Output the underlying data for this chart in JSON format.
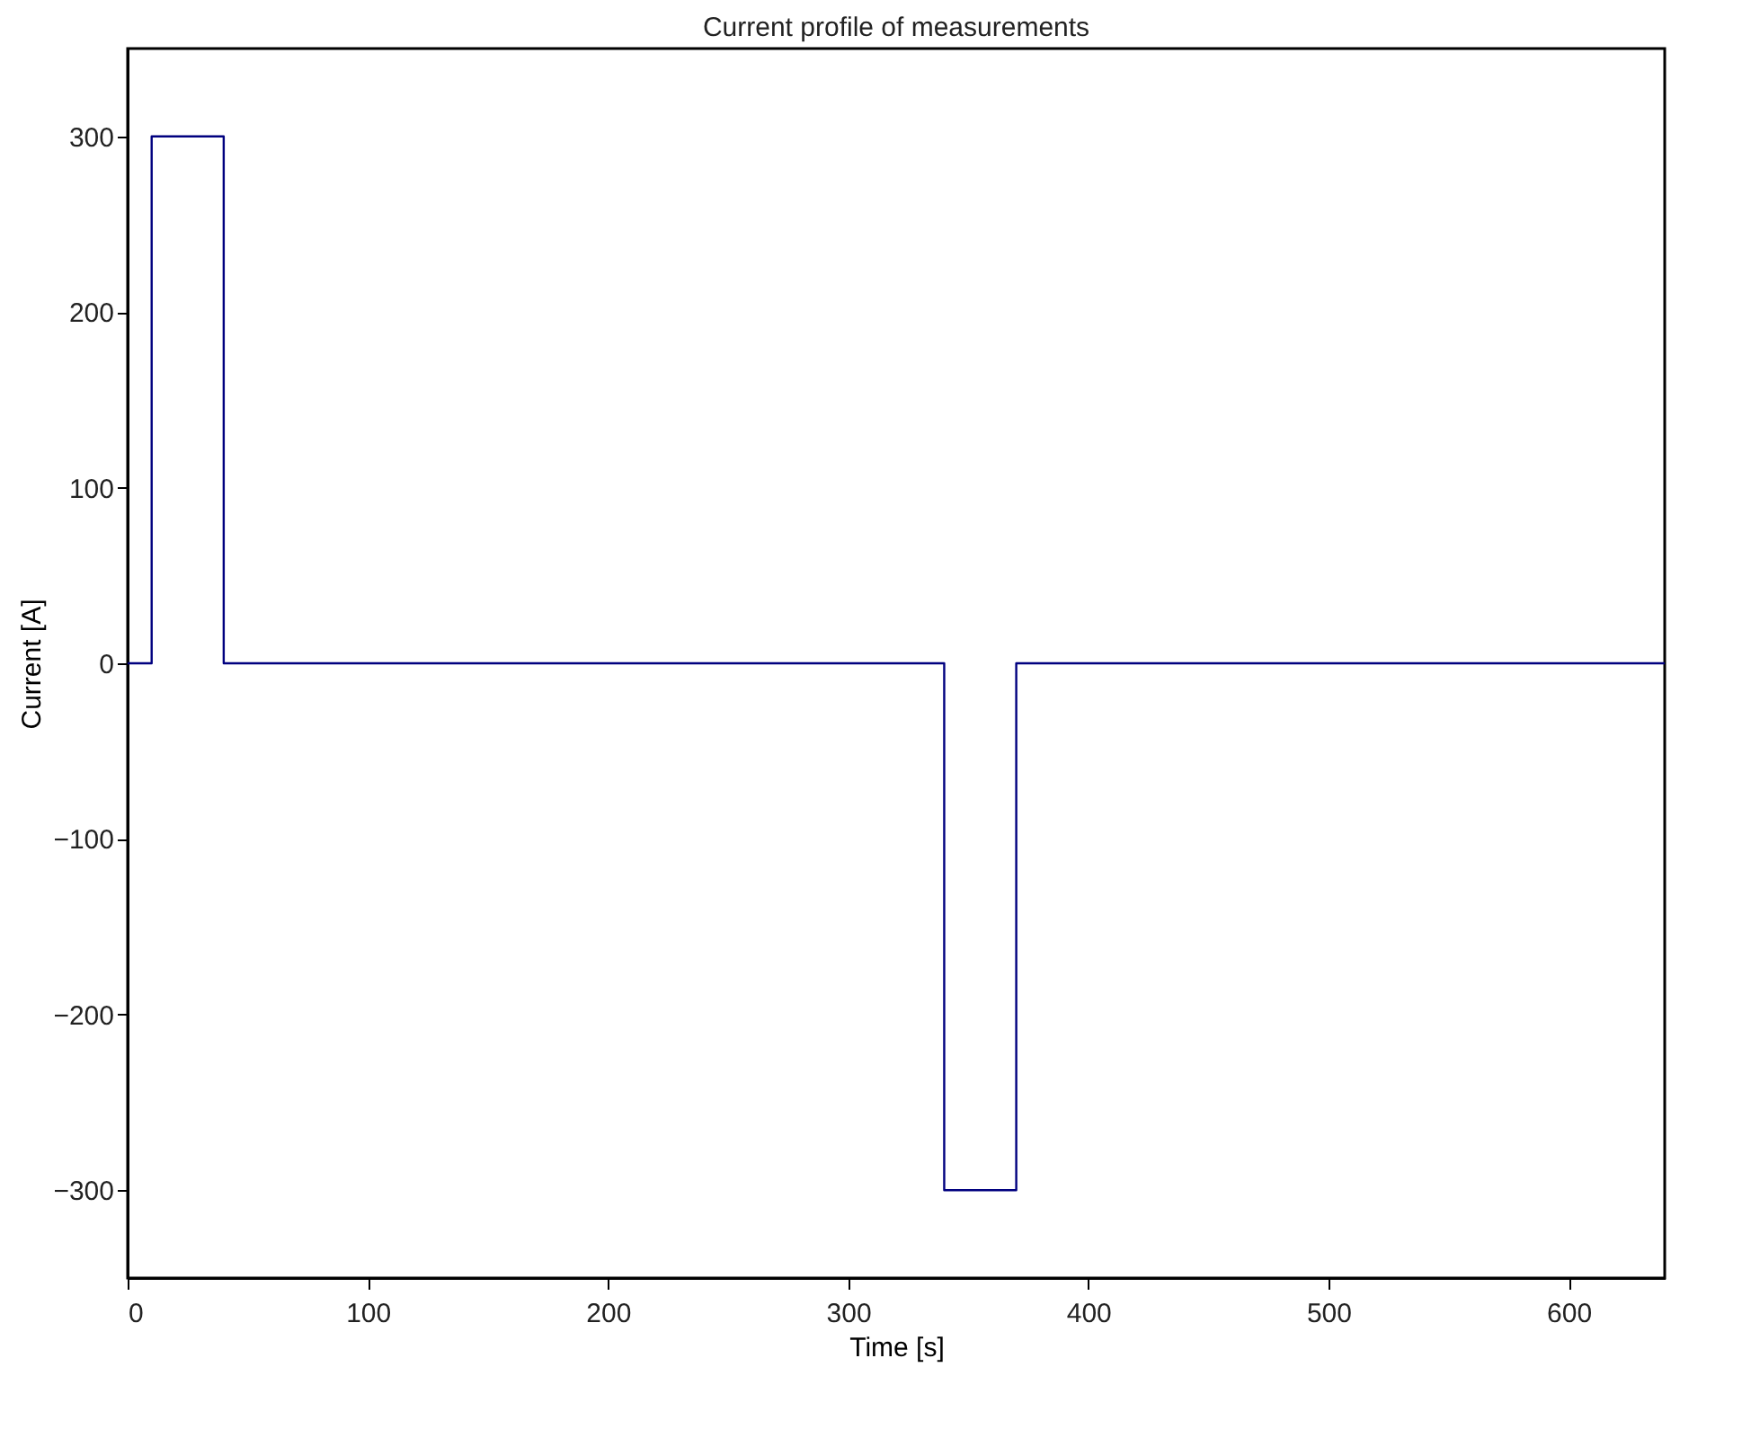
{
  "chart_data": {
    "type": "line",
    "title": "Current profile of measurements",
    "xlabel": "Time [s]",
    "ylabel": "Current [A]",
    "series": [
      {
        "color": "#00007f",
        "x": [
          0,
          10,
          10,
          40,
          40,
          340,
          340,
          370,
          370,
          640
        ],
        "values": [
          0,
          0,
          300,
          300,
          0,
          0,
          -300,
          -300,
          0,
          0
        ]
      }
    ],
    "xlim": [
      0,
      640
    ],
    "xticks": [
      0,
      100,
      200,
      300,
      400,
      500,
      600
    ],
    "ylim": [
      -350,
      350
    ],
    "yticks": [
      -300,
      -200,
      -100,
      0,
      100,
      200,
      300
    ],
    "grid": false,
    "legend": false
  }
}
